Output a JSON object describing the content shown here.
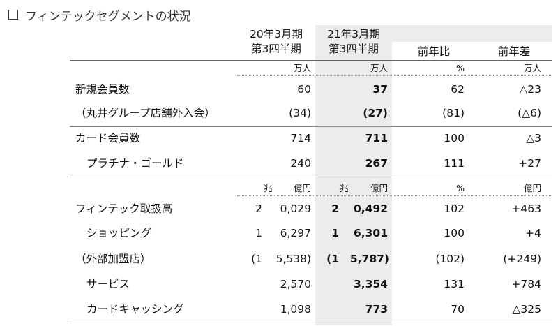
{
  "title": "フィンテックセグメントの状況",
  "header": {
    "col1_line1": "20年3月期",
    "col1_line2": "第3四半期",
    "col2_line1": "21年3月期",
    "col2_line2": "第3四半期",
    "col3": "前年比",
    "col4": "前年差"
  },
  "units1": {
    "col1": "万人",
    "col2": "万人",
    "col3": "%",
    "col4": "万人"
  },
  "units2": {
    "col1_cho": "兆",
    "col1_oku": "億円",
    "col2_cho": "兆",
    "col2_oku": "億円",
    "col3": "%",
    "col4": "億円"
  },
  "rows": [
    {
      "label": "新規会員数",
      "v1": "60",
      "v2": "37",
      "v3": "62",
      "v4": "△23"
    },
    {
      "label": "（丸井グループ店舗外入会）",
      "v1": "(34)",
      "v2": "(27)",
      "v3": "(81)",
      "v4": "(△6)"
    },
    {
      "label": "カード会員数",
      "v1": "714",
      "v2": "711",
      "v3": "100",
      "v4": "△3"
    },
    {
      "label": "プラチナ・ゴールド",
      "v1": "240",
      "v2": "267",
      "v3": "111",
      "v4": "+27"
    }
  ],
  "rows2": [
    {
      "label": "フィンテック取扱高",
      "v1a": "2",
      "v1b": "0,029",
      "v2a": "2",
      "v2b": "0,492",
      "v3": "102",
      "v4": "+463"
    },
    {
      "label": "ショッピング",
      "v1a": "1",
      "v1b": "6,297",
      "v2a": "1",
      "v2b": "6,301",
      "v3": "100",
      "v4": "+4"
    },
    {
      "label": "（外部加盟店）",
      "v1a": "(1",
      "v1b": "5,538)",
      "v2a": "(1",
      "v2b": "5,787)",
      "v3": "(102)",
      "v4": "(+249)"
    },
    {
      "label": "サービス",
      "v1b": "2,570",
      "v2b": "3,354",
      "v3": "131",
      "v4": "+784"
    },
    {
      "label": "カードキャッシング",
      "v1b": "1,098",
      "v2b": "773",
      "v3": "70",
      "v4": "△325"
    }
  ]
}
